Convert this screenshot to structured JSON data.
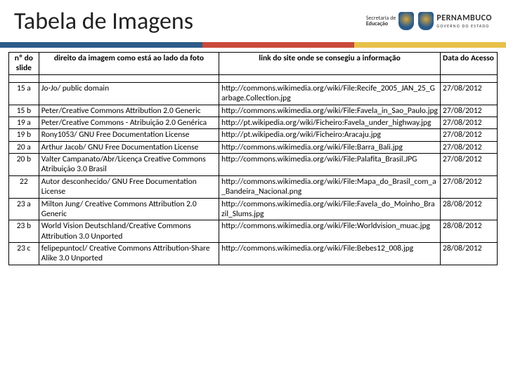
{
  "header": {
    "title": "Tabela de Imagens",
    "logo_secretaria_top": "Secretaria de",
    "logo_secretaria_bottom": "Educação",
    "logo_state": "PERNAMBUCO",
    "logo_state_sub": "GOVERNO DO ESTADO"
  },
  "stripe_colors": {
    "blue": "#2e5c8a",
    "red": "#c94a3a",
    "yellow": "#e8c04a"
  },
  "table": {
    "columns": [
      "nº do slide",
      "direito da imagem como está ao lado da foto",
      "link do site onde se consegiu a informação",
      "Data do Acesso"
    ],
    "rows": [
      {
        "slide": "15 a",
        "rights": "Jo-Jo/ public domain",
        "link": "http://commons.wikimedia.org/wiki/File:Recife_2005_JAN_25_Garbage.Collection.jpg",
        "date": "27/08/2012"
      },
      {
        "slide": "15 b",
        "rights": "Peter/Creative Commons Attribution 2.0 Generic",
        "link": "http://commons.wikimedia.org/wiki/File:Favela_in_Sao_Paulo.jpg",
        "date": "27/08/2012"
      },
      {
        "slide": "19 a",
        "rights": "Peter/Creative Commons - Atribuição 2.0 Genérica",
        "link": "http://pt.wikipedia.org/wiki/Ficheiro:Favela_under_highway.jpg",
        "date": "27/08/2012"
      },
      {
        "slide": "19 b",
        "rights": "Rony1053/ GNU Free Documentation License",
        "link": "http://pt.wikipedia.org/wiki/Ficheiro:Aracaju.jpg",
        "date": "27/08/2012"
      },
      {
        "slide": "20 a",
        "rights": "Arthur Jacob/  GNU Free Documentation License",
        "link": "http://commons.wikimedia.org/wiki/File:Barra_Bali.jpg",
        "date": "27/08/2012"
      },
      {
        "slide": "20 b",
        "rights": "Valter Campanato/Abr/Licença Creative Commons Atribuição 3.0 Brasil",
        "link": "http://commons.wikimedia.org/wiki/File:Palafita_Brasil.JPG",
        "date": "27/08/2012"
      },
      {
        "slide": "22",
        "rights": "Autor desconhecido/ GNU Free Documentation License",
        "link": "http://commons.wikimedia.org/wiki/File:Mapa_do_Brasil_com_a_Bandeira_Nacional.png",
        "date": "27/08/2012"
      },
      {
        "slide": "23 a",
        "rights": "Milton Jung/ Creative Commons Attribution 2.0 Generic",
        "link": "http://commons.wikimedia.org/wiki/File:Favela_do_Moinho_Brazil_Slums.jpg",
        "date": "28/08/2012"
      },
      {
        "slide": "23 b",
        "rights": "World Vision Deutschland/Creative Commons Attribution 3.0 Unported",
        "link": "http://commons.wikimedia.org/wiki/File:Worldvision_muac.jpg",
        "date": "28/08/2012"
      },
      {
        "slide": "23 c",
        "rights": "felipepuntocl/ Creative Commons Attribution-Share Alike 3.0 Unported",
        "link": "http://commons.wikimedia.org/wiki/File:Bebes12_008.jpg",
        "date": "28/08/2012"
      }
    ]
  }
}
